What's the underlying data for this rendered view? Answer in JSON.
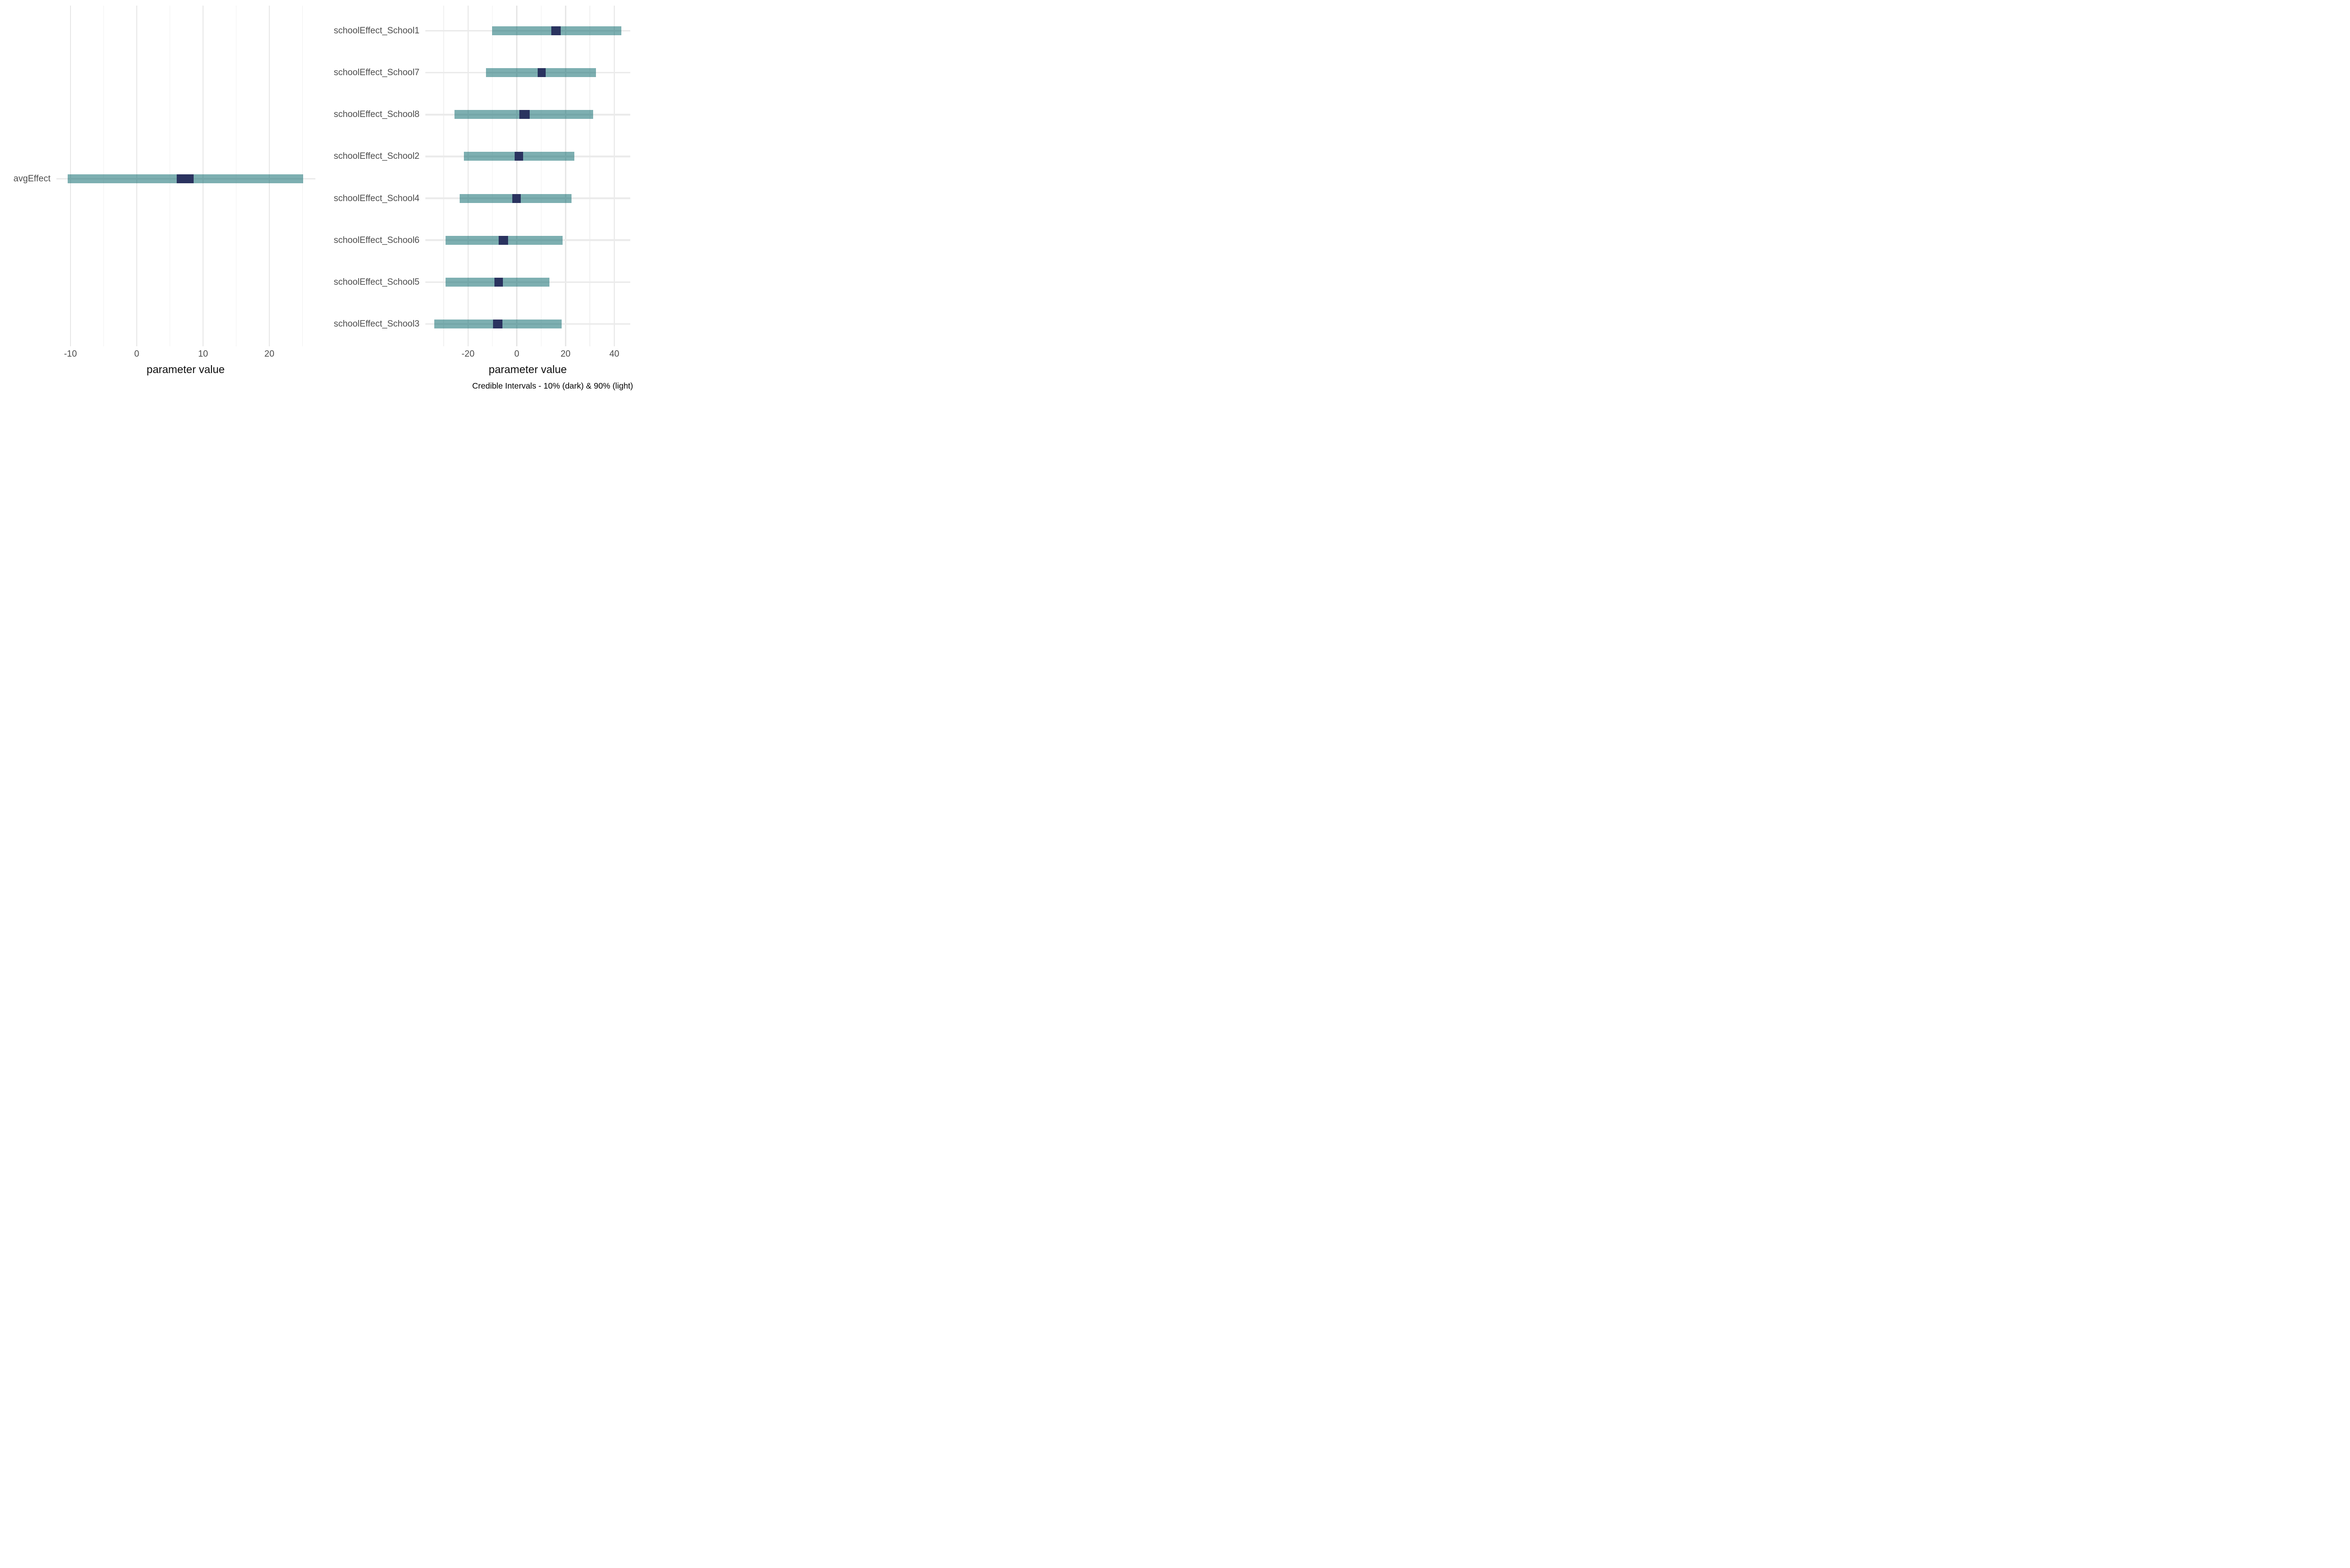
{
  "figure": {
    "background": "#ffffff",
    "caption": "Credible Intervals - 10% (dark) & 90% (light)"
  },
  "colors": {
    "outer_interval_rgba": "rgba(24,113,116,0.56)",
    "outer_interval_flat": "#7fafb1",
    "inner_interval": "#2a335f",
    "grid_major": "#e7e7e7",
    "grid_minor": "#f1f1f1",
    "row_gridline": "#ebebeb",
    "tick_text": "#4d4d4d",
    "axis_title_text": "#0d0d0d",
    "caption_text": "#000000"
  },
  "chart_data": [
    {
      "type": "bar",
      "subtype": "horizontal-credible-intervals",
      "title": "",
      "xlabel": "parameter value",
      "ylabel": "",
      "xlim": [
        -12.15,
        26.9
      ],
      "x_ticks_major": [
        -10,
        0,
        10,
        20
      ],
      "x_ticks_minor": [
        -5,
        5,
        15,
        25
      ],
      "grid": "on",
      "legend_position": "none",
      "categories": [
        "avgEffect"
      ],
      "series": [
        {
          "name": "90% credible interval (light)",
          "intervals": [
            [
              -10.4,
              25.1
            ]
          ]
        },
        {
          "name": "10% credible interval (dark)",
          "intervals": [
            [
              6.0,
              8.6
            ]
          ]
        }
      ],
      "rows": [
        {
          "label": "avgEffect",
          "outer": [
            -10.4,
            25.1
          ],
          "inner": [
            6.0,
            8.6
          ]
        }
      ]
    },
    {
      "type": "bar",
      "subtype": "horizontal-credible-intervals",
      "title": "",
      "xlabel": "parameter value",
      "ylabel": "",
      "caption": "Credible Intervals - 10% (dark) & 90% (light)",
      "xlim": [
        -37.6,
        46.6
      ],
      "x_ticks_major": [
        -20,
        0,
        20,
        40
      ],
      "x_ticks_minor": [
        -30,
        -10,
        10,
        30
      ],
      "grid": "on",
      "legend_position": "none",
      "categories": [
        "schoolEffect_School1",
        "schoolEffect_School7",
        "schoolEffect_School8",
        "schoolEffect_School2",
        "schoolEffect_School4",
        "schoolEffect_School6",
        "schoolEffect_School5",
        "schoolEffect_School3"
      ],
      "series": [
        {
          "name": "90% credible interval (light)",
          "intervals": [
            [
              -10.2,
              42.8
            ],
            [
              -12.6,
              32.5
            ],
            [
              -25.5,
              31.4
            ],
            [
              -21.6,
              23.7
            ],
            [
              -23.5,
              22.4
            ],
            [
              -29.2,
              18.7
            ],
            [
              -29.2,
              13.3
            ],
            [
              -33.8,
              18.5
            ]
          ]
        },
        {
          "name": "10% credible interval (dark)",
          "intervals": [
            [
              14.2,
              18.1
            ],
            [
              8.5,
              11.9
            ],
            [
              1.1,
              5.2
            ],
            [
              -0.9,
              2.6
            ],
            [
              -1.8,
              1.6
            ],
            [
              -7.4,
              -3.6
            ],
            [
              -9.1,
              -5.7
            ],
            [
              -9.7,
              -5.8
            ]
          ]
        }
      ],
      "rows": [
        {
          "label": "schoolEffect_School1",
          "outer": [
            -10.2,
            42.8
          ],
          "inner": [
            14.2,
            18.1
          ]
        },
        {
          "label": "schoolEffect_School7",
          "outer": [
            -12.6,
            32.5
          ],
          "inner": [
            8.5,
            11.9
          ]
        },
        {
          "label": "schoolEffect_School8",
          "outer": [
            -25.5,
            31.4
          ],
          "inner": [
            1.1,
            5.2
          ]
        },
        {
          "label": "schoolEffect_School2",
          "outer": [
            -21.6,
            23.7
          ],
          "inner": [
            -0.9,
            2.6
          ]
        },
        {
          "label": "schoolEffect_School4",
          "outer": [
            -23.5,
            22.4
          ],
          "inner": [
            -1.8,
            1.6
          ]
        },
        {
          "label": "schoolEffect_School6",
          "outer": [
            -29.2,
            18.7
          ],
          "inner": [
            -7.4,
            -3.6
          ]
        },
        {
          "label": "schoolEffect_School5",
          "outer": [
            -29.2,
            13.3
          ],
          "inner": [
            -9.1,
            -5.7
          ]
        },
        {
          "label": "schoolEffect_School3",
          "outer": [
            -33.8,
            18.5
          ],
          "inner": [
            -9.7,
            -5.8
          ]
        }
      ]
    }
  ]
}
